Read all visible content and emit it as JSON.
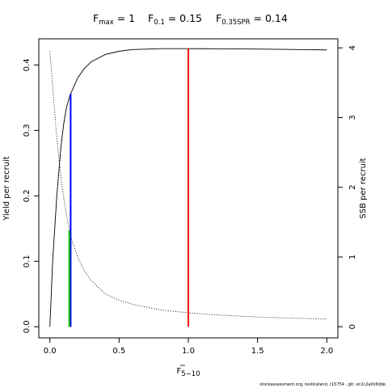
{
  "chart_data": {
    "type": "line",
    "title": {
      "fmax": {
        "label": "F",
        "sub": "max",
        "eq": " = 1"
      },
      "f01": {
        "label": "F",
        "sub": "0.1",
        "eq": " = 0.15"
      },
      "fspr": {
        "label": "F",
        "sub": "0.35SPR",
        "eq": " = 0.14"
      }
    },
    "xlabel": {
      "label": "F",
      "sub": "5−10"
    },
    "ylabel": "Yield per recruit",
    "ylabel_right": "SSB per recruit",
    "xlim": [
      -0.08,
      2.08
    ],
    "ylim": [
      -0.017,
      0.44
    ],
    "ylim_right": [
      -0.16,
      4.13
    ],
    "x_ticks": [
      0,
      0.5,
      1,
      1.5,
      2
    ],
    "x_tick_labels": [
      "0.0",
      "0.5",
      "1.0",
      "1.5",
      "2.0"
    ],
    "y_ticks": [
      0,
      0.1,
      0.2,
      0.3,
      0.4
    ],
    "y_tick_labels": [
      "0.0",
      "0.1",
      "0.2",
      "0.3",
      "0.4"
    ],
    "y_right_ticks": [
      0,
      1,
      2,
      3,
      4
    ],
    "y_right_tick_labels": [
      "0",
      "1",
      "2",
      "3",
      "4"
    ],
    "series": [
      {
        "axis": "left",
        "style": "solid",
        "color": "#000000",
        "x": [
          0,
          0.02,
          0.05,
          0.08,
          0.1,
          0.12,
          0.14,
          0.15,
          0.2,
          0.25,
          0.3,
          0.4,
          0.5,
          0.6,
          0.8,
          1.0,
          1.2,
          1.5,
          1.8,
          2.0
        ],
        "y": [
          0,
          0.1,
          0.2,
          0.275,
          0.31,
          0.335,
          0.35,
          0.356,
          0.38,
          0.395,
          0.405,
          0.416,
          0.421,
          0.4235,
          0.425,
          0.425,
          0.4248,
          0.4243,
          0.4236,
          0.423
        ]
      },
      {
        "axis": "right",
        "style": "dotted",
        "color": "#000000",
        "x": [
          0,
          0.02,
          0.05,
          0.08,
          0.1,
          0.12,
          0.15,
          0.2,
          0.25,
          0.3,
          0.4,
          0.5,
          0.6,
          0.8,
          1.0,
          1.2,
          1.5,
          1.8,
          2.0
        ],
        "y": [
          3.95,
          3.45,
          2.7,
          2.15,
          1.85,
          1.6,
          1.3,
          1.0,
          0.8,
          0.66,
          0.47,
          0.38,
          0.32,
          0.24,
          0.2,
          0.17,
          0.14,
          0.12,
          0.11
        ]
      }
    ],
    "reference_lines": [
      {
        "name": "F0.1",
        "x": 0.15,
        "y": 0.356,
        "color": "#0000ff"
      },
      {
        "name": "F0.35SPR",
        "x": 0.14,
        "y": 0.147,
        "color": "#00cc00"
      },
      {
        "name": "Fmax",
        "x": 1.0,
        "y": 0.425,
        "color": "#ff0000"
      }
    ]
  },
  "footer": "stockassessment.org, testIceland, r15754 , git: ec2c2a0c6dde"
}
